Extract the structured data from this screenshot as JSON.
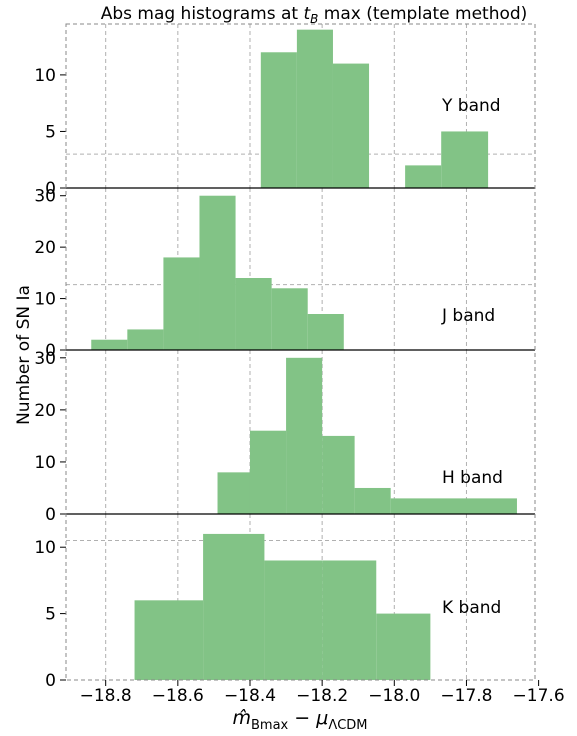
{
  "figure": {
    "title": "Abs mag histograms at t_B max (template method)",
    "title_parts": {
      "before": "Abs mag histograms at ",
      "t": "t",
      "sub": "B",
      "after": " max (template method)"
    },
    "ylabel": "Number of SN Ia",
    "xlabel_parts": {
      "m": "m̂",
      "m_sub": "Bmax",
      "minus": " − ",
      "mu": "μ",
      "mu_sub": "ΛCDM"
    },
    "bar_color": "#82c386",
    "grid_color": "#b0b0b0"
  },
  "chart_data": [
    {
      "type": "bar",
      "label": "Y band",
      "bins": [
        {
          "x0": -18.37,
          "x1": -18.27,
          "count": 12
        },
        {
          "x0": -18.27,
          "x1": -18.17,
          "count": 14
        },
        {
          "x0": -18.17,
          "x1": -18.07,
          "count": 11
        },
        {
          "x0": -18.07,
          "x1": -17.97,
          "count": 0
        },
        {
          "x0": -17.97,
          "x1": -17.87,
          "count": 2
        },
        {
          "x0": -17.87,
          "x1": -17.74,
          "count": 5
        }
      ],
      "yticks": [
        0,
        5,
        10
      ],
      "ylim": [
        0,
        14.5
      ],
      "hline": 3
    },
    {
      "type": "bar",
      "label": "J band",
      "bins": [
        {
          "x0": -18.84,
          "x1": -18.74,
          "count": 2
        },
        {
          "x0": -18.74,
          "x1": -18.64,
          "count": 4
        },
        {
          "x0": -18.64,
          "x1": -18.54,
          "count": 18
        },
        {
          "x0": -18.54,
          "x1": -18.44,
          "count": 30
        },
        {
          "x0": -18.44,
          "x1": -18.34,
          "count": 14
        },
        {
          "x0": -18.34,
          "x1": -18.24,
          "count": 12
        },
        {
          "x0": -18.24,
          "x1": -18.14,
          "count": 7
        }
      ],
      "yticks": [
        0,
        10,
        20,
        30
      ],
      "ylim": [
        0,
        31.5
      ],
      "hline": 12.7
    },
    {
      "type": "bar",
      "label": "H band",
      "bins": [
        {
          "x0": -18.49,
          "x1": -18.4,
          "count": 8
        },
        {
          "x0": -18.4,
          "x1": -18.3,
          "count": 16
        },
        {
          "x0": -18.3,
          "x1": -18.2,
          "count": 30
        },
        {
          "x0": -18.2,
          "x1": -18.11,
          "count": 15
        },
        {
          "x0": -18.11,
          "x1": -18.01,
          "count": 5
        },
        {
          "x0": -18.01,
          "x1": -17.66,
          "count": 3
        }
      ],
      "yticks": [
        0,
        10,
        20,
        30
      ],
      "ylim": [
        0,
        31.5
      ],
      "hline": null
    },
    {
      "type": "bar",
      "label": "K band",
      "bins": [
        {
          "x0": -18.72,
          "x1": -18.53,
          "count": 6
        },
        {
          "x0": -18.53,
          "x1": -18.36,
          "count": 11
        },
        {
          "x0": -18.36,
          "x1": -18.2,
          "count": 9
        },
        {
          "x0": -18.2,
          "x1": -18.05,
          "count": 9
        },
        {
          "x0": -18.05,
          "x1": -17.9,
          "count": 5
        }
      ],
      "yticks": [
        0,
        5,
        10
      ],
      "ylim": [
        0,
        12.5
      ],
      "hline": 10.5
    }
  ],
  "xaxis": {
    "xlim": [
      -18.91,
      -17.61
    ],
    "ticks": [
      -18.8,
      -18.6,
      -18.4,
      -18.2,
      -18.0,
      -17.8,
      -17.6
    ],
    "tick_labels": [
      "−18.8",
      "−18.6",
      "−18.4",
      "−18.2",
      "−18.0",
      "−17.8",
      "−17.6"
    ]
  }
}
